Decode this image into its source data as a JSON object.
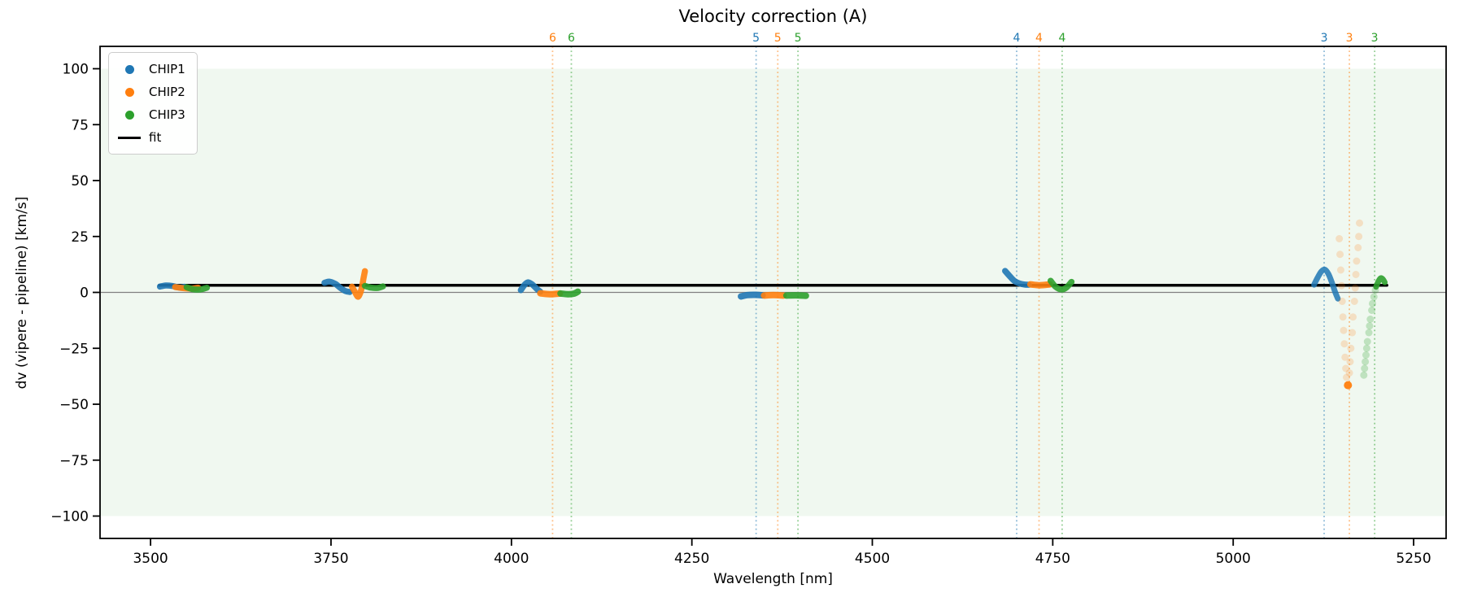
{
  "figure": {
    "title": "Velocity correction (A)",
    "xlabel": "Wavelength [nm]",
    "ylabel": "dv (vipere - pipeline) [km/s]"
  },
  "legend": {
    "items": [
      {
        "label": "CHIP1",
        "color": "#1f77b4",
        "marker": "dot"
      },
      {
        "label": "CHIP2",
        "color": "#ff7f0e",
        "marker": "dot"
      },
      {
        "label": "CHIP3",
        "color": "#2ca02c",
        "marker": "dot"
      },
      {
        "label": "fit",
        "color": "#000000",
        "marker": "line"
      }
    ]
  },
  "chart_data": {
    "type": "scatter",
    "title": "Velocity correction (A)",
    "xlabel": "Wavelength [nm]",
    "ylabel": "dv (vipere - pipeline) [km/s]",
    "xlim": [
      3430,
      5295
    ],
    "ylim": [
      -110,
      110
    ],
    "grid": false,
    "legend_position": "upper left",
    "x_ticks": [
      {
        "value": 3500,
        "label": "3500"
      },
      {
        "value": 3750,
        "label": "3750"
      },
      {
        "value": 4000,
        "label": "4000"
      },
      {
        "value": 4250,
        "label": "4250"
      },
      {
        "value": 4500,
        "label": "4500"
      },
      {
        "value": 4750,
        "label": "4750"
      },
      {
        "value": 5000,
        "label": "5000"
      },
      {
        "value": 5250,
        "label": "5250"
      }
    ],
    "y_ticks": [
      {
        "value": 100,
        "label": "100"
      },
      {
        "value": 75,
        "label": "75"
      },
      {
        "value": 50,
        "label": "50"
      },
      {
        "value": 25,
        "label": "25"
      },
      {
        "value": 0,
        "label": "0"
      },
      {
        "value": -25,
        "label": "−25"
      },
      {
        "value": -50,
        "label": "−50"
      },
      {
        "value": -75,
        "label": "−75"
      },
      {
        "value": -100,
        "label": "−100"
      }
    ],
    "shaded_band": {
      "ymin": -100,
      "ymax": 100,
      "color": "#2ca02c",
      "opacity": 0.07
    },
    "zero_line": {
      "y": 0,
      "color": "#808080",
      "width": 1.2
    },
    "fit_line": {
      "label": "fit",
      "y": 3.2,
      "x_start": 3512,
      "x_end": 5213,
      "color": "#000000",
      "width": 3.5
    },
    "order_lines": [
      {
        "order": "6",
        "chip": "CHIP2",
        "color": "#ff7f0e",
        "wavelength": 4057
      },
      {
        "order": "6",
        "chip": "CHIP3",
        "color": "#2ca02c",
        "wavelength": 4083
      },
      {
        "order": "5",
        "chip": "CHIP1",
        "color": "#1f77b4",
        "wavelength": 4339
      },
      {
        "order": "5",
        "chip": "CHIP2",
        "color": "#ff7f0e",
        "wavelength": 4369
      },
      {
        "order": "5",
        "chip": "CHIP3",
        "color": "#2ca02c",
        "wavelength": 4397
      },
      {
        "order": "4",
        "chip": "CHIP1",
        "color": "#1f77b4",
        "wavelength": 4700
      },
      {
        "order": "4",
        "chip": "CHIP2",
        "color": "#ff7f0e",
        "wavelength": 4731
      },
      {
        "order": "4",
        "chip": "CHIP3",
        "color": "#2ca02c",
        "wavelength": 4763
      },
      {
        "order": "3",
        "chip": "CHIP1",
        "color": "#1f77b4",
        "wavelength": 5126
      },
      {
        "order": "3",
        "chip": "CHIP2",
        "color": "#ff7f0e",
        "wavelength": 5161
      },
      {
        "order": "3",
        "chip": "CHIP3",
        "color": "#2ca02c",
        "wavelength": 5196
      }
    ],
    "series": [
      {
        "name": "CHIP1",
        "color": "#1f77b4",
        "segments": [
          {
            "style": "line",
            "width": 7.5,
            "opacity": 0.9,
            "points": [
              [
                3513,
                2.6
              ],
              [
                3521,
                3.1
              ],
              [
                3530,
                2.9
              ],
              [
                3540,
                2.2
              ],
              [
                3547,
                2.5
              ]
            ]
          },
          {
            "style": "line",
            "width": 7.5,
            "opacity": 0.9,
            "points": [
              [
                3741,
                4.3
              ],
              [
                3748,
                4.8
              ],
              [
                3756,
                3.8
              ],
              [
                3763,
                2.0
              ],
              [
                3770,
                0.6
              ],
              [
                3776,
                0.2
              ]
            ]
          },
          {
            "style": "line",
            "width": 7.5,
            "opacity": 0.9,
            "points": [
              [
                4013,
                1.0
              ],
              [
                4018,
                3.3
              ],
              [
                4023,
                4.5
              ],
              [
                4029,
                3.5
              ],
              [
                4035,
                1.6
              ],
              [
                4040,
                0.3
              ]
            ]
          },
          {
            "style": "line",
            "width": 8,
            "opacity": 0.9,
            "points": [
              [
                4318,
                -1.8
              ],
              [
                4327,
                -1.2
              ],
              [
                4338,
                -1.1
              ],
              [
                4348,
                -1.3
              ]
            ]
          },
          {
            "style": "line",
            "width": 7.5,
            "opacity": 0.9,
            "points": [
              [
                4684,
                9.6
              ],
              [
                4690,
                7.4
              ],
              [
                4697,
                5.1
              ],
              [
                4704,
                4.0
              ],
              [
                4711,
                3.5
              ],
              [
                4717,
                3.4
              ]
            ]
          },
          {
            "style": "line",
            "width": 7,
            "opacity": 0.85,
            "points": [
              [
                5112,
                3.4
              ],
              [
                5117,
                6.6
              ],
              [
                5122,
                9.3
              ],
              [
                5127,
                10.2
              ],
              [
                5132,
                8.2
              ],
              [
                5137,
                4.2
              ],
              [
                5141,
                0.4
              ],
              [
                5145,
                -2.8
              ]
            ]
          }
        ]
      },
      {
        "name": "CHIP2",
        "color": "#ff7f0e",
        "segments": [
          {
            "style": "line",
            "width": 7.5,
            "opacity": 0.9,
            "points": [
              [
                3534,
                2.4
              ],
              [
                3545,
                1.9
              ],
              [
                3556,
                1.7
              ],
              [
                3566,
                2.1
              ]
            ]
          },
          {
            "style": "line",
            "width": 7.5,
            "opacity": 0.9,
            "points": [
              [
                3779,
                2.6
              ],
              [
                3783,
                0.3
              ],
              [
                3787,
                -1.9
              ],
              [
                3790,
                -0.7
              ],
              [
                3793,
                2.6
              ],
              [
                3795,
                6.2
              ],
              [
                3797,
                9.5
              ]
            ]
          },
          {
            "style": "line",
            "width": 8,
            "opacity": 0.9,
            "points": [
              [
                4040,
                -0.4
              ],
              [
                4053,
                -0.8
              ],
              [
                4067,
                -0.5
              ]
            ]
          },
          {
            "style": "line",
            "width": 8,
            "opacity": 0.9,
            "points": [
              [
                4350,
                -1.4
              ],
              [
                4363,
                -1.2
              ],
              [
                4377,
                -1.4
              ]
            ]
          },
          {
            "style": "line",
            "width": 8,
            "opacity": 0.9,
            "points": [
              [
                4719,
                3.6
              ],
              [
                4732,
                3.2
              ],
              [
                4746,
                3.6
              ]
            ]
          },
          {
            "style": "dots",
            "radius": 4.5,
            "opacity": 0.2,
            "points": [
              [
                5147,
                24
              ],
              [
                5148,
                17
              ],
              [
                5149,
                10
              ],
              [
                5150,
                3
              ],
              [
                5151,
                -4
              ],
              [
                5152,
                -11
              ],
              [
                5153,
                -17
              ],
              [
                5154,
                -23
              ],
              [
                5155,
                -29
              ],
              [
                5156,
                -34
              ],
              [
                5157,
                -38
              ],
              [
                5161,
                -36
              ],
              [
                5162,
                -31
              ],
              [
                5163,
                -25
              ],
              [
                5165,
                -18
              ],
              [
                5166,
                -11
              ],
              [
                5168,
                -4
              ],
              [
                5169,
                2
              ],
              [
                5170,
                8
              ],
              [
                5171,
                14
              ],
              [
                5173,
                20
              ],
              [
                5174,
                25
              ],
              [
                5175,
                31
              ]
            ]
          },
          {
            "style": "dots",
            "radius": 5,
            "opacity": 0.95,
            "points": [
              [
                5159,
                -41.5
              ]
            ]
          }
        ]
      },
      {
        "name": "CHIP3",
        "color": "#2ca02c",
        "segments": [
          {
            "style": "line",
            "width": 7.5,
            "opacity": 0.9,
            "points": [
              [
                3550,
                2.3
              ],
              [
                3559,
                1.4
              ],
              [
                3569,
                1.3
              ],
              [
                3578,
                2.1
              ]
            ]
          },
          {
            "style": "line",
            "width": 7.5,
            "opacity": 0.9,
            "points": [
              [
                3797,
                2.9
              ],
              [
                3806,
                2.1
              ],
              [
                3815,
                2.0
              ],
              [
                3822,
                2.7
              ]
            ]
          },
          {
            "style": "line",
            "width": 8,
            "opacity": 0.9,
            "points": [
              [
                4068,
                -0.5
              ],
              [
                4078,
                -0.8
              ],
              [
                4086,
                -0.6
              ],
              [
                4092,
                0.3
              ]
            ]
          },
          {
            "style": "line",
            "width": 8,
            "opacity": 0.9,
            "points": [
              [
                4381,
                -1.4
              ],
              [
                4394,
                -1.3
              ],
              [
                4408,
                -1.5
              ]
            ]
          },
          {
            "style": "line",
            "width": 7.5,
            "opacity": 0.9,
            "points": [
              [
                4747,
                5.2
              ],
              [
                4754,
                2.5
              ],
              [
                4762,
                1.3
              ],
              [
                4769,
                2.2
              ],
              [
                4776,
                4.7
              ]
            ]
          },
          {
            "style": "dots",
            "radius": 4.5,
            "opacity": 0.25,
            "points": [
              [
                5181,
                -37
              ],
              [
                5182,
                -34
              ],
              [
                5183,
                -31
              ],
              [
                5184,
                -28
              ],
              [
                5185,
                -25
              ],
              [
                5186,
                -22
              ],
              [
                5188,
                -18
              ],
              [
                5189,
                -15
              ],
              [
                5190,
                -12
              ],
              [
                5192,
                -8
              ],
              [
                5193,
                -5
              ],
              [
                5195,
                -2
              ],
              [
                5197,
                1
              ]
            ]
          },
          {
            "style": "line",
            "width": 7,
            "opacity": 0.9,
            "points": [
              [
                5198,
                2.5
              ],
              [
                5201,
                4.8
              ],
              [
                5204,
                6.3
              ],
              [
                5207,
                6.0
              ],
              [
                5210,
                4.5
              ]
            ]
          }
        ]
      }
    ]
  }
}
